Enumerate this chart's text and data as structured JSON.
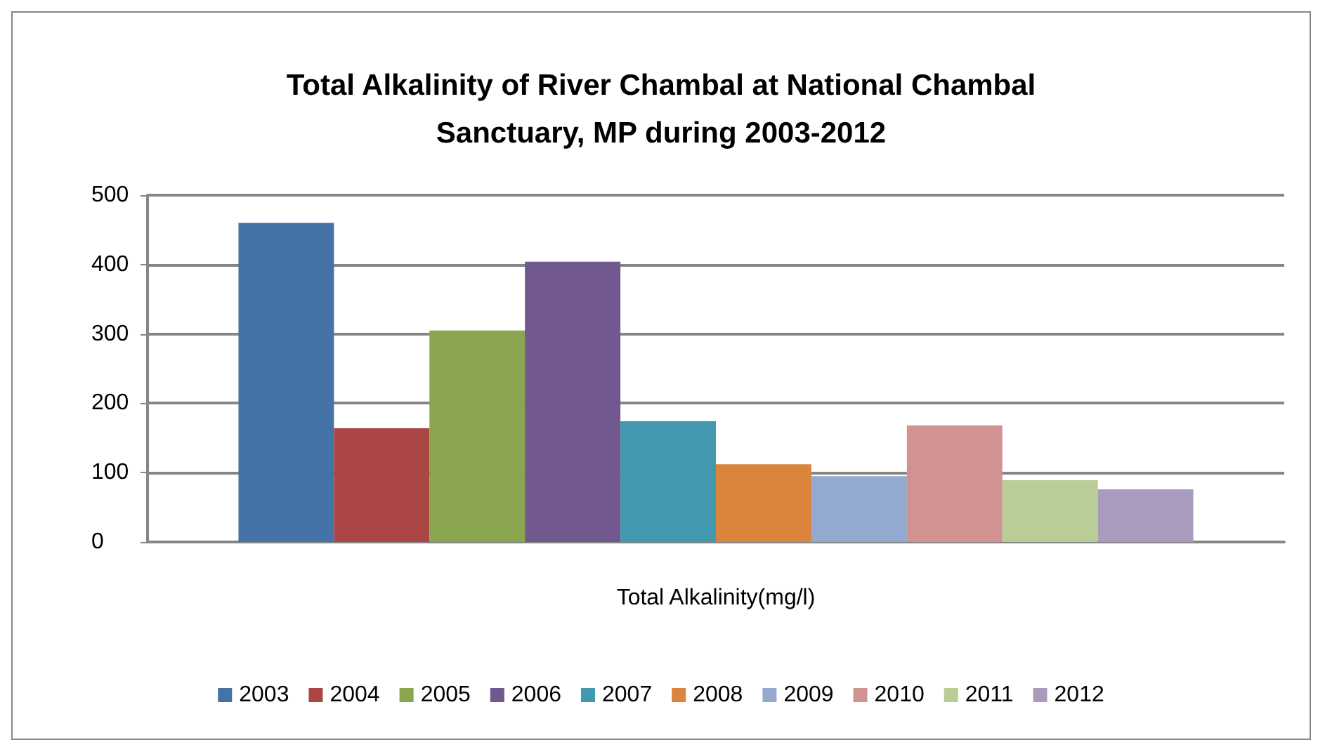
{
  "chart_data": {
    "type": "bar",
    "title": "Total Alkalinity of River Chambal at National Chambal\nSanctuary, MP during 2003-2012",
    "categories": [
      "Total Alkalinity(mg/l)"
    ],
    "series": [
      {
        "name": "2003",
        "color": "#4572a7",
        "values": [
          460
        ]
      },
      {
        "name": "2004",
        "color": "#aa4643",
        "values": [
          164
        ]
      },
      {
        "name": "2005",
        "color": "#89a54e",
        "values": [
          305
        ]
      },
      {
        "name": "2006",
        "color": "#71588f",
        "values": [
          404
        ]
      },
      {
        "name": "2007",
        "color": "#4198af",
        "values": [
          174
        ]
      },
      {
        "name": "2008",
        "color": "#db843d",
        "values": [
          112
        ]
      },
      {
        "name": "2009",
        "color": "#93a9cf",
        "values": [
          95
        ]
      },
      {
        "name": "2010",
        "color": "#d19392",
        "values": [
          168
        ]
      },
      {
        "name": "2011",
        "color": "#b9cd96",
        "values": [
          89
        ]
      },
      {
        "name": "2012",
        "color": "#a99bbd",
        "values": [
          76
        ]
      }
    ],
    "ylim": [
      0,
      500
    ],
    "yticks": [
      0,
      100,
      200,
      300,
      400,
      500
    ],
    "grid": "y",
    "legend": "bottom"
  }
}
